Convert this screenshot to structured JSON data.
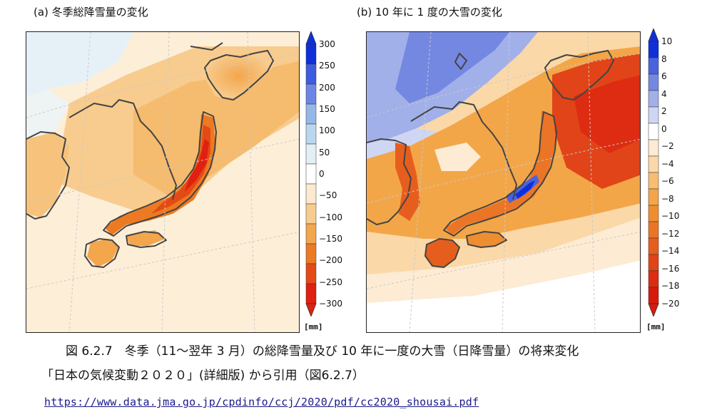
{
  "panel_a": {
    "title": "(a)  冬季総降雪量の変化",
    "unit": "[mm]",
    "ticks": [
      "300",
      "250",
      "200",
      "150",
      "100",
      "50",
      "0",
      "−50",
      "−100",
      "−150",
      "−200",
      "−250",
      "−300"
    ],
    "colors": [
      "#0f2fd8",
      "#3e5ce0",
      "#6d86e6",
      "#93b8e8",
      "#b9d8ee",
      "#e2f0f6",
      "#ffffff",
      "#fde9cf",
      "#f8cc8e",
      "#f3a64c",
      "#ec7a22",
      "#e44a16",
      "#e02010"
    ]
  },
  "panel_b": {
    "title": "(b) 10 年に 1 度の大雪の変化",
    "unit": "[mm]",
    "ticks": [
      "10",
      "8",
      "6",
      "4",
      "2",
      "0",
      "−2",
      "−4",
      "−6",
      "−8",
      "−10",
      "−12",
      "−14",
      "−16",
      "−18",
      "−20"
    ],
    "colors": [
      "#0f2fd8",
      "#4a63de",
      "#7488e2",
      "#a2b0ea",
      "#cfd6f4",
      "#ffffff",
      "#fdebd4",
      "#fbd8a8",
      "#f7be72",
      "#f3a648",
      "#ef8e30",
      "#eb7526",
      "#e65e1e",
      "#e14418",
      "#dd2c12",
      "#d81a0c"
    ]
  },
  "caption": {
    "line1": "図 6.2.7　冬季（11〜翌年 3 月）の総降雪量及び 10 年に一度の大雪（日降雪量）の将来変化",
    "line2": "「日本の気候変動２０２０」(詳細版) から引用（図6.2.7）",
    "link": "https://www.data.jma.go.jp/cpdinfo/ccj/2020/pdf/cc2020_shousai.pdf"
  }
}
